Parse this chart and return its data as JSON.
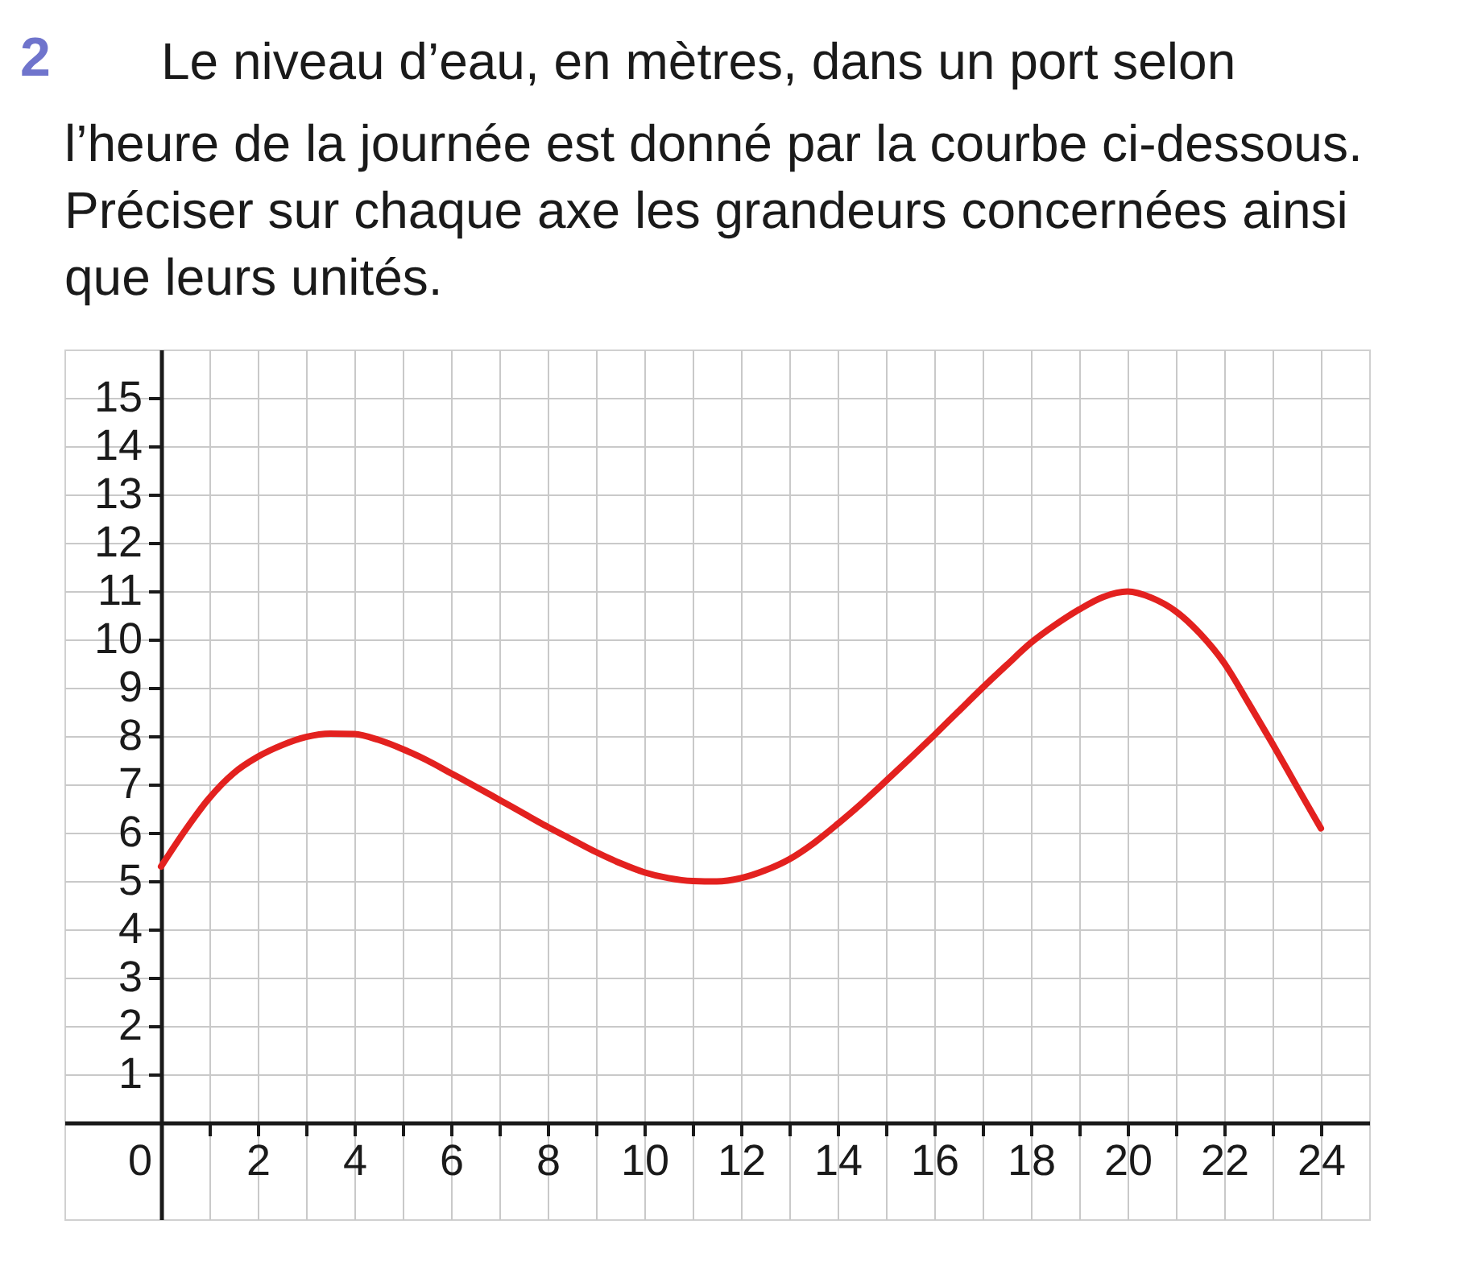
{
  "chart_data": {
    "type": "line",
    "title": "Le niveau d’eau, en mètres, dans un port selon\nl’heure de la journée est donné par la courbe ci-dessous.\nPréciser sur chaque axe les grandeurs concernées ainsi\nque leurs unités.",
    "annotations": [
      "2"
    ],
    "x": [
      0,
      0.5,
      1,
      1.5,
      2,
      2.5,
      3,
      3.5,
      4,
      4.5,
      5,
      5.5,
      6,
      6.5,
      7,
      7.5,
      8,
      8.5,
      9,
      9.5,
      10,
      10.5,
      11,
      11.5,
      12,
      12.5,
      13,
      13.5,
      14,
      14.5,
      15,
      15.5,
      16,
      16.5,
      17,
      17.5,
      18,
      18.5,
      19,
      19.5,
      20,
      20.5,
      21,
      21.5,
      22,
      22.5,
      23,
      23.5,
      24
    ],
    "series": [
      {
        "color": "#e3211f",
        "values": [
          5.3,
          6.05,
          6.72,
          7.23,
          7.57,
          7.81,
          7.98,
          8.05,
          8.04,
          7.92,
          7.73,
          7.5,
          7.23,
          6.96,
          6.68,
          6.4,
          6.12,
          5.86,
          5.6,
          5.37,
          5.18,
          5.06,
          5.0,
          4.99,
          5.06,
          5.22,
          5.45,
          5.78,
          6.18,
          6.61,
          7.07,
          7.54,
          8.02,
          8.51,
          9.0,
          9.47,
          9.93,
          10.3,
          10.62,
          10.88,
          10.99,
          10.86,
          10.58,
          10.12,
          9.51,
          8.69,
          7.84,
          6.96,
          6.09
        ]
      }
    ],
    "xlim": [
      -2,
      25
    ],
    "ylim": [
      -2,
      16
    ],
    "xticks": [
      0,
      {
        "value": 1,
        "label": null
      },
      2,
      {
        "value": 3,
        "label": null
      },
      4,
      {
        "value": 5,
        "label": null
      },
      6,
      {
        "value": 7,
        "label": null
      },
      8,
      {
        "value": 9,
        "label": null
      },
      10,
      {
        "value": 11,
        "label": null
      },
      12,
      {
        "value": 13,
        "label": null
      },
      14,
      {
        "value": 15,
        "label": null
      },
      16,
      {
        "value": 17,
        "label": null
      },
      18,
      {
        "value": 19,
        "label": null
      },
      20,
      {
        "value": 21,
        "label": null
      },
      22,
      {
        "value": 23,
        "label": null
      },
      24
    ],
    "yticks": [
      1,
      2,
      3,
      4,
      5,
      6,
      7,
      8,
      9,
      10,
      11,
      12,
      13,
      14,
      15
    ],
    "grid": true
  }
}
